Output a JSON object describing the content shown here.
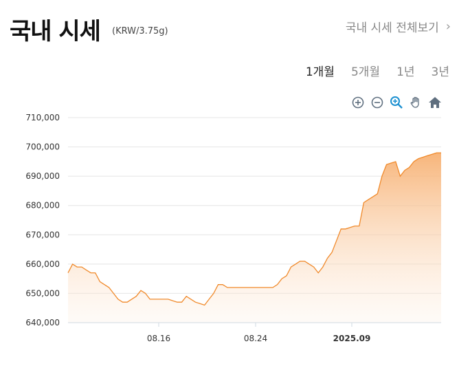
{
  "header": {
    "title": "국내 시세",
    "unit": "(KRW/3.75g)",
    "more_link": "국내 시세 전체보기"
  },
  "tabs": [
    {
      "label": "1개월",
      "active": true
    },
    {
      "label": "5개월",
      "active": false
    },
    {
      "label": "1년",
      "active": false
    },
    {
      "label": "3년",
      "active": false
    }
  ],
  "toolbar": [
    "zoom-in-icon",
    "zoom-out-icon",
    "zoom-select-icon",
    "pan-hand-icon",
    "home-icon"
  ],
  "colors": {
    "line": "#f0892a",
    "fill_top": "#f7b173",
    "grid": "#e4e4e4",
    "tool": "#5f6f7f",
    "tool_active": "#1a8fd0"
  },
  "chart_data": {
    "type": "area",
    "ylim": [
      640000,
      710000
    ],
    "xlim": [
      0,
      1
    ],
    "y_ticks": [
      {
        "value": 710000,
        "label": "710,000"
      },
      {
        "value": 700000,
        "label": "700,000"
      },
      {
        "value": 690000,
        "label": "690,000"
      },
      {
        "value": 680000,
        "label": "680,000"
      },
      {
        "value": 670000,
        "label": "670,000"
      },
      {
        "value": 660000,
        "label": "660,000"
      },
      {
        "value": 650000,
        "label": "650,000"
      },
      {
        "value": 640000,
        "label": "640,000"
      }
    ],
    "x_ticks": [
      {
        "label": "08.16",
        "bold": false
      },
      {
        "label": "08.24",
        "bold": false
      },
      {
        "label": "2025.09",
        "bold": true
      }
    ],
    "grid": true,
    "values": [
      657000,
      660000,
      659000,
      659000,
      658000,
      657000,
      657000,
      654000,
      653000,
      652000,
      650000,
      648000,
      647000,
      647000,
      648000,
      649000,
      651000,
      650000,
      648000,
      648000,
      648000,
      648000,
      648000,
      647500,
      647000,
      647000,
      649000,
      648000,
      647000,
      646500,
      646000,
      648000,
      650000,
      653000,
      653000,
      652000,
      652000,
      652000,
      652000,
      652000,
      652000,
      652000,
      652000,
      652000,
      652000,
      652000,
      653000,
      655000,
      656000,
      659000,
      660000,
      661000,
      661000,
      660000,
      659000,
      657000,
      659000,
      662000,
      664000,
      668000,
      672000,
      672000,
      672500,
      673000,
      673000,
      681000,
      682000,
      683000,
      684000,
      690000,
      694000,
      694500,
      695000,
      690000,
      692000,
      693000,
      695000,
      696000,
      696500,
      697000,
      697500,
      698000,
      698000
    ]
  }
}
